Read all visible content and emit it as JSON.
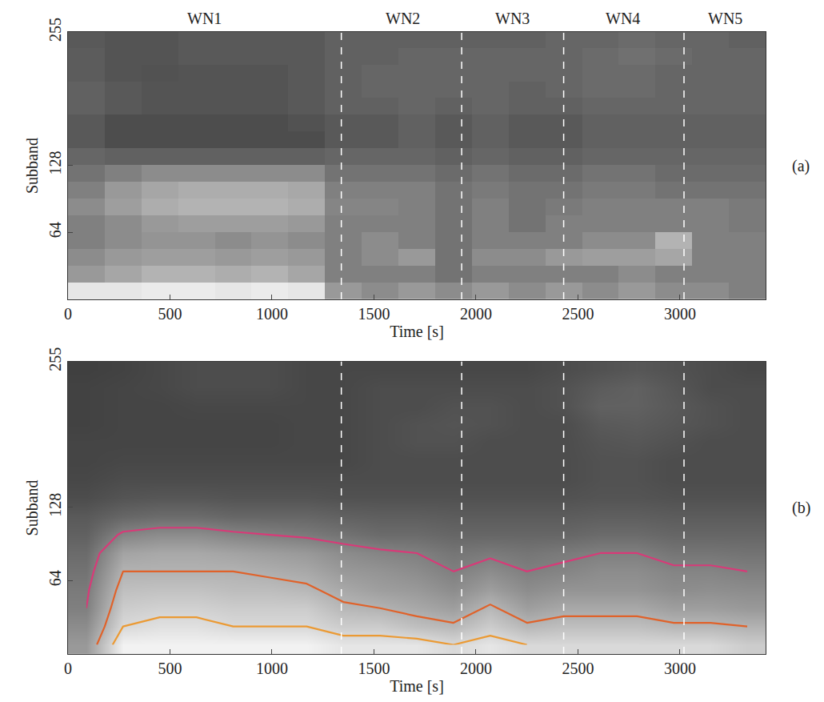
{
  "chart_data": [
    {
      "type": "heatmap",
      "panel_label": "(a)",
      "xlabel": "Time [s]",
      "ylabel": "Subband",
      "xlim": [
        0,
        3420
      ],
      "ylim": [
        0,
        255
      ],
      "xticks": [
        0,
        500,
        1000,
        1500,
        2000,
        2500,
        3000
      ],
      "yticks": [
        64,
        128,
        255
      ],
      "color_range": [
        0,
        1
      ],
      "boundaries": [
        1340,
        1930,
        2430,
        3020
      ],
      "annotations": [
        {
          "x": 670,
          "text": "WN1"
        },
        {
          "x": 1640,
          "text": "WN2"
        },
        {
          "x": 2180,
          "text": "WN3"
        },
        {
          "x": 2720,
          "text": "WN4"
        },
        {
          "x": 3220,
          "text": "WN5"
        }
      ],
      "x": [
        90,
        270,
        450,
        630,
        810,
        990,
        1170,
        1350,
        1530,
        1710,
        1890,
        2070,
        2250,
        2430,
        2610,
        2790,
        2970,
        3150,
        3330
      ],
      "y": [
        8,
        24,
        40,
        56,
        72,
        88,
        104,
        120,
        136,
        152,
        168,
        184,
        200,
        216,
        232,
        248
      ],
      "z": [
        [
          0.9,
          0.9,
          0.92,
          0.92,
          0.9,
          0.92,
          0.9,
          0.6,
          0.55,
          0.6,
          0.55,
          0.6,
          0.55,
          0.6,
          0.55,
          0.6,
          0.55,
          0.55,
          0.5
        ],
        [
          0.6,
          0.65,
          0.7,
          0.7,
          0.68,
          0.7,
          0.65,
          0.5,
          0.5,
          0.5,
          0.45,
          0.5,
          0.5,
          0.5,
          0.5,
          0.55,
          0.5,
          0.5,
          0.5
        ],
        [
          0.55,
          0.6,
          0.62,
          0.62,
          0.6,
          0.62,
          0.6,
          0.5,
          0.55,
          0.6,
          0.45,
          0.55,
          0.55,
          0.6,
          0.62,
          0.62,
          0.65,
          0.5,
          0.5
        ],
        [
          0.5,
          0.55,
          0.58,
          0.58,
          0.55,
          0.58,
          0.55,
          0.5,
          0.55,
          0.5,
          0.45,
          0.5,
          0.5,
          0.5,
          0.55,
          0.55,
          0.7,
          0.5,
          0.5
        ],
        [
          0.5,
          0.55,
          0.6,
          0.62,
          0.62,
          0.62,
          0.6,
          0.5,
          0.5,
          0.5,
          0.45,
          0.5,
          0.45,
          0.5,
          0.5,
          0.5,
          0.5,
          0.5,
          0.48
        ],
        [
          0.55,
          0.62,
          0.68,
          0.7,
          0.7,
          0.7,
          0.68,
          0.52,
          0.52,
          0.5,
          0.45,
          0.5,
          0.45,
          0.48,
          0.5,
          0.5,
          0.5,
          0.5,
          0.48
        ],
        [
          0.5,
          0.6,
          0.65,
          0.68,
          0.68,
          0.68,
          0.66,
          0.5,
          0.5,
          0.5,
          0.45,
          0.48,
          0.45,
          0.45,
          0.48,
          0.48,
          0.45,
          0.45,
          0.45
        ],
        [
          0.45,
          0.5,
          0.55,
          0.55,
          0.55,
          0.55,
          0.55,
          0.45,
          0.45,
          0.45,
          0.42,
          0.45,
          0.42,
          0.42,
          0.45,
          0.45,
          0.42,
          0.42,
          0.42
        ],
        [
          0.4,
          0.38,
          0.38,
          0.38,
          0.38,
          0.38,
          0.38,
          0.4,
          0.4,
          0.4,
          0.38,
          0.4,
          0.38,
          0.38,
          0.4,
          0.4,
          0.4,
          0.4,
          0.4
        ],
        [
          0.35,
          0.3,
          0.3,
          0.3,
          0.3,
          0.3,
          0.3,
          0.35,
          0.35,
          0.38,
          0.35,
          0.38,
          0.35,
          0.35,
          0.38,
          0.38,
          0.38,
          0.38,
          0.38
        ],
        [
          0.35,
          0.3,
          0.3,
          0.3,
          0.3,
          0.3,
          0.32,
          0.35,
          0.35,
          0.38,
          0.35,
          0.38,
          0.35,
          0.35,
          0.38,
          0.38,
          0.38,
          0.38,
          0.38
        ],
        [
          0.38,
          0.35,
          0.33,
          0.33,
          0.33,
          0.33,
          0.35,
          0.38,
          0.38,
          0.4,
          0.38,
          0.4,
          0.38,
          0.38,
          0.4,
          0.4,
          0.4,
          0.4,
          0.4
        ],
        [
          0.38,
          0.35,
          0.33,
          0.33,
          0.33,
          0.33,
          0.35,
          0.38,
          0.4,
          0.4,
          0.4,
          0.4,
          0.38,
          0.4,
          0.42,
          0.42,
          0.4,
          0.4,
          0.4
        ],
        [
          0.36,
          0.33,
          0.32,
          0.33,
          0.33,
          0.33,
          0.35,
          0.38,
          0.4,
          0.4,
          0.4,
          0.4,
          0.4,
          0.4,
          0.42,
          0.42,
          0.4,
          0.4,
          0.4
        ],
        [
          0.36,
          0.33,
          0.33,
          0.35,
          0.35,
          0.35,
          0.35,
          0.38,
          0.38,
          0.4,
          0.4,
          0.4,
          0.4,
          0.4,
          0.42,
          0.44,
          0.42,
          0.4,
          0.4
        ],
        [
          0.35,
          0.33,
          0.33,
          0.35,
          0.35,
          0.35,
          0.35,
          0.38,
          0.38,
          0.38,
          0.38,
          0.38,
          0.38,
          0.4,
          0.4,
          0.42,
          0.4,
          0.4,
          0.38
        ]
      ]
    },
    {
      "type": "heatmap",
      "panel_label": "(b)",
      "xlabel": "Time [s]",
      "ylabel": "Subband",
      "xlim": [
        0,
        3420
      ],
      "ylim": [
        0,
        255
      ],
      "xticks": [
        0,
        500,
        1000,
        1500,
        2000,
        2500,
        3000
      ],
      "yticks": [
        64,
        128,
        255
      ],
      "color_range": [
        0,
        1
      ],
      "boundaries": [
        1340,
        1930,
        2430,
        3020
      ],
      "contours": [
        {
          "level": 0.5,
          "color": "#d83a78"
        },
        {
          "level": 0.7,
          "color": "#e0622a"
        },
        {
          "level": 0.85,
          "color": "#eb9a34"
        }
      ],
      "x": [
        90,
        270,
        450,
        630,
        810,
        990,
        1170,
        1350,
        1530,
        1710,
        1890,
        2070,
        2250,
        2430,
        2610,
        2790,
        2970,
        3150,
        3330
      ],
      "y": [
        8,
        24,
        40,
        56,
        72,
        88,
        104,
        120,
        136,
        152,
        168,
        184,
        200,
        216,
        232,
        248
      ],
      "z": [
        [
          0.6,
          0.95,
          0.95,
          0.95,
          0.95,
          0.95,
          0.95,
          0.9,
          0.9,
          0.9,
          0.85,
          0.9,
          0.85,
          0.85,
          0.85,
          0.85,
          0.85,
          0.85,
          0.8
        ],
        [
          0.55,
          0.85,
          0.88,
          0.88,
          0.85,
          0.85,
          0.85,
          0.8,
          0.8,
          0.75,
          0.72,
          0.8,
          0.72,
          0.75,
          0.75,
          0.75,
          0.72,
          0.72,
          0.7
        ],
        [
          0.5,
          0.8,
          0.82,
          0.82,
          0.8,
          0.8,
          0.8,
          0.72,
          0.7,
          0.66,
          0.62,
          0.72,
          0.62,
          0.66,
          0.66,
          0.66,
          0.62,
          0.62,
          0.6
        ],
        [
          0.48,
          0.75,
          0.76,
          0.76,
          0.74,
          0.74,
          0.72,
          0.66,
          0.62,
          0.6,
          0.55,
          0.62,
          0.55,
          0.58,
          0.58,
          0.58,
          0.55,
          0.56,
          0.55
        ],
        [
          0.45,
          0.7,
          0.7,
          0.7,
          0.7,
          0.68,
          0.66,
          0.6,
          0.58,
          0.55,
          0.5,
          0.55,
          0.5,
          0.52,
          0.55,
          0.55,
          0.52,
          0.52,
          0.5
        ],
        [
          0.42,
          0.64,
          0.66,
          0.66,
          0.64,
          0.62,
          0.6,
          0.55,
          0.52,
          0.5,
          0.46,
          0.48,
          0.46,
          0.48,
          0.5,
          0.5,
          0.46,
          0.46,
          0.45
        ],
        [
          0.38,
          0.52,
          0.55,
          0.55,
          0.52,
          0.5,
          0.48,
          0.45,
          0.42,
          0.42,
          0.4,
          0.4,
          0.4,
          0.4,
          0.42,
          0.42,
          0.4,
          0.4,
          0.4
        ],
        [
          0.35,
          0.4,
          0.42,
          0.42,
          0.4,
          0.4,
          0.4,
          0.38,
          0.37,
          0.37,
          0.36,
          0.36,
          0.36,
          0.36,
          0.37,
          0.37,
          0.36,
          0.36,
          0.36
        ],
        [
          0.3,
          0.33,
          0.34,
          0.34,
          0.33,
          0.33,
          0.33,
          0.32,
          0.32,
          0.32,
          0.32,
          0.32,
          0.32,
          0.32,
          0.33,
          0.33,
          0.32,
          0.32,
          0.32
        ],
        [
          0.28,
          0.3,
          0.3,
          0.3,
          0.3,
          0.3,
          0.3,
          0.3,
          0.3,
          0.3,
          0.3,
          0.3,
          0.3,
          0.3,
          0.32,
          0.32,
          0.3,
          0.3,
          0.3
        ],
        [
          0.27,
          0.28,
          0.28,
          0.28,
          0.28,
          0.28,
          0.28,
          0.28,
          0.3,
          0.3,
          0.3,
          0.3,
          0.3,
          0.3,
          0.32,
          0.32,
          0.3,
          0.3,
          0.3
        ],
        [
          0.27,
          0.27,
          0.27,
          0.27,
          0.27,
          0.27,
          0.28,
          0.28,
          0.3,
          0.32,
          0.32,
          0.3,
          0.3,
          0.3,
          0.33,
          0.34,
          0.32,
          0.3,
          0.3
        ],
        [
          0.26,
          0.27,
          0.27,
          0.27,
          0.27,
          0.27,
          0.28,
          0.28,
          0.3,
          0.32,
          0.33,
          0.32,
          0.3,
          0.3,
          0.35,
          0.36,
          0.34,
          0.32,
          0.3
        ],
        [
          0.26,
          0.27,
          0.27,
          0.28,
          0.28,
          0.28,
          0.28,
          0.28,
          0.3,
          0.3,
          0.32,
          0.32,
          0.3,
          0.32,
          0.38,
          0.38,
          0.35,
          0.32,
          0.3
        ],
        [
          0.26,
          0.27,
          0.28,
          0.3,
          0.3,
          0.3,
          0.28,
          0.28,
          0.3,
          0.3,
          0.3,
          0.3,
          0.3,
          0.32,
          0.36,
          0.38,
          0.34,
          0.3,
          0.3
        ],
        [
          0.25,
          0.26,
          0.28,
          0.3,
          0.3,
          0.3,
          0.28,
          0.28,
          0.28,
          0.28,
          0.28,
          0.28,
          0.28,
          0.3,
          0.32,
          0.34,
          0.32,
          0.3,
          0.28
        ]
      ]
    }
  ]
}
